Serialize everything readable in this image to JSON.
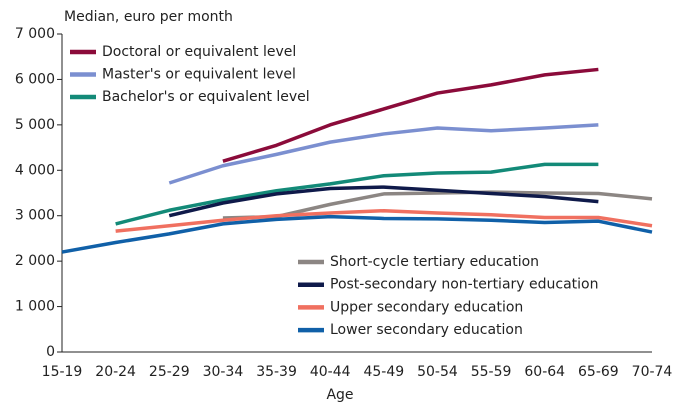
{
  "chart_data": {
    "type": "line",
    "y_axis_title": "Median, euro per month",
    "x_axis_title": "Age",
    "categories": [
      "15-19",
      "20-24",
      "25-29",
      "30-34",
      "35-39",
      "40-44",
      "45-49",
      "50-54",
      "55-59",
      "60-64",
      "65-69",
      "70-74"
    ],
    "series": [
      {
        "name": "Doctoral or equivalent level",
        "color": "#8b0b3a",
        "values": [
          null,
          null,
          null,
          4200,
          4550,
          5000,
          5350,
          5700,
          5880,
          6100,
          6220,
          null
        ]
      },
      {
        "name": "Master's or equivalent level",
        "color": "#7b8fd0",
        "values": [
          null,
          null,
          3720,
          4100,
          4350,
          4620,
          4800,
          4930,
          4870,
          4930,
          5000,
          null
        ]
      },
      {
        "name": "Bachelor's or equivalent level",
        "color": "#138a78",
        "values": [
          null,
          2820,
          3120,
          3350,
          3550,
          3700,
          3880,
          3940,
          3960,
          4130,
          4130,
          null
        ]
      },
      {
        "name": "Short-cycle tertiary education",
        "color": "#8c8683",
        "values": [
          null,
          null,
          null,
          2950,
          2980,
          3250,
          3480,
          3500,
          3520,
          3500,
          3490,
          3370
        ]
      },
      {
        "name": "Post-secondary non-tertiary education",
        "color": "#0f1a4a",
        "values": [
          null,
          null,
          3000,
          3280,
          3480,
          3600,
          3630,
          3560,
          3490,
          3420,
          3310,
          null
        ]
      },
      {
        "name": "Upper secondary education",
        "color": "#f07060",
        "values": [
          null,
          2660,
          2780,
          2900,
          3000,
          3060,
          3110,
          3060,
          3020,
          2960,
          2960,
          2780
        ]
      },
      {
        "name": "Lower secondary education",
        "color": "#1060a8",
        "values": [
          2200,
          2410,
          2600,
          2820,
          2920,
          2980,
          2940,
          2930,
          2900,
          2850,
          2880,
          2640
        ]
      }
    ],
    "ylim": [
      0,
      7000
    ],
    "yticks": [
      0,
      {
        "value": 1000,
        "label": "1 000"
      },
      {
        "value": 2000,
        "label": "2 000"
      },
      {
        "value": 3000,
        "label": "3 000"
      },
      {
        "value": 4000,
        "label": "4 000"
      },
      {
        "value": 5000,
        "label": "5 000"
      },
      {
        "value": 6000,
        "label": "6 000"
      },
      {
        "value": 7000,
        "label": "7 000"
      }
    ],
    "grid": false
  }
}
